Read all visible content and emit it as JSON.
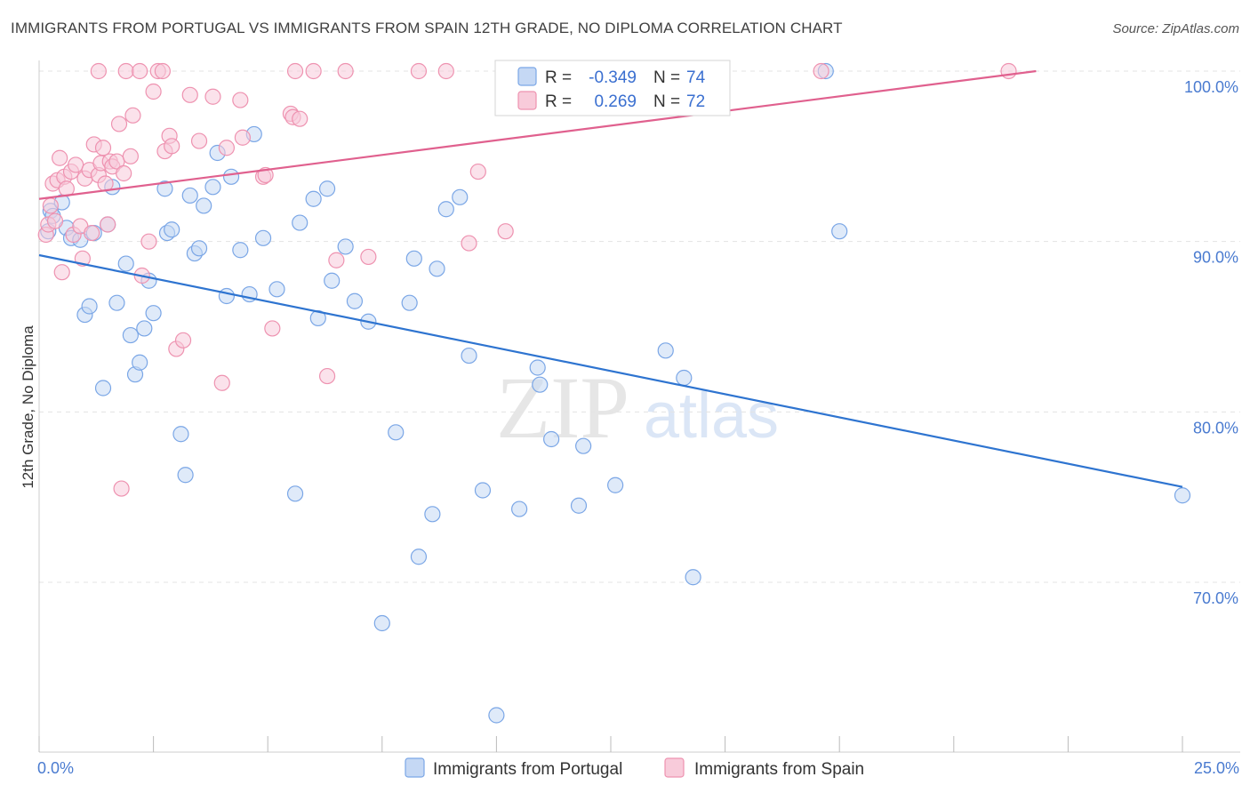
{
  "title": "IMMIGRANTS FROM PORTUGAL VS IMMIGRANTS FROM SPAIN 12TH GRADE, NO DIPLOMA CORRELATION CHART",
  "source": "Source: ZipAtlas.com",
  "watermark": {
    "zip": "ZIP",
    "atlas": "atlas"
  },
  "chart_data": {
    "type": "scatter",
    "ylabel": "12th Grade, No Diploma",
    "xlim": [
      0,
      25
    ],
    "ylim": [
      60.5,
      101
    ],
    "x_ticks": [
      0,
      2.5,
      5,
      7.5,
      10,
      12.5,
      15,
      17.5,
      20,
      22.5,
      25
    ],
    "x_tick_labels": {
      "start": "0.0%",
      "end": "25.0%"
    },
    "y_ticks": [
      {
        "value": 100,
        "label": "100.0%"
      },
      {
        "value": 90,
        "label": "90.0%"
      },
      {
        "value": 80,
        "label": "80.0%"
      },
      {
        "value": 70,
        "label": "70.0%"
      }
    ],
    "grid": "horizontal-dashed",
    "legend_position": "bottom-center",
    "stats": [
      {
        "r_label": "R =",
        "r_value": "-0.349",
        "n_label": "N =",
        "n_value": "74"
      },
      {
        "r_label": "R =",
        "r_value": "0.269",
        "n_label": "N =",
        "n_value": "72"
      }
    ],
    "series": [
      {
        "name": "Immigrants from Portugal",
        "color": "#7aa6e6",
        "fill": "#c5d8f4",
        "trend_color": "#2e74d0",
        "trend": {
          "x": [
            0,
            25
          ],
          "y": [
            89.2,
            75.6
          ]
        },
        "points": [
          [
            0.2,
            90.6
          ],
          [
            0.25,
            91.8
          ],
          [
            0.3,
            91.5
          ],
          [
            0.5,
            92.3
          ],
          [
            0.6,
            90.8
          ],
          [
            0.7,
            90.2
          ],
          [
            0.9,
            90.1
          ],
          [
            1.0,
            85.7
          ],
          [
            1.1,
            86.2
          ],
          [
            1.2,
            90.5
          ],
          [
            1.4,
            81.4
          ],
          [
            1.5,
            91.0
          ],
          [
            1.6,
            93.2
          ],
          [
            1.7,
            86.4
          ],
          [
            1.9,
            88.7
          ],
          [
            2.0,
            84.5
          ],
          [
            2.1,
            82.2
          ],
          [
            2.2,
            82.9
          ],
          [
            2.3,
            84.9
          ],
          [
            2.4,
            87.7
          ],
          [
            2.5,
            85.8
          ],
          [
            2.75,
            93.1
          ],
          [
            2.8,
            90.5
          ],
          [
            2.9,
            90.7
          ],
          [
            3.1,
            78.7
          ],
          [
            3.2,
            76.3
          ],
          [
            3.3,
            92.7
          ],
          [
            3.4,
            89.3
          ],
          [
            3.5,
            89.6
          ],
          [
            3.6,
            92.1
          ],
          [
            3.8,
            93.2
          ],
          [
            3.9,
            95.2
          ],
          [
            4.1,
            86.8
          ],
          [
            4.2,
            93.8
          ],
          [
            4.4,
            89.5
          ],
          [
            4.6,
            86.9
          ],
          [
            4.7,
            96.3
          ],
          [
            4.9,
            90.2
          ],
          [
            5.2,
            87.2
          ],
          [
            5.6,
            75.2
          ],
          [
            5.7,
            91.1
          ],
          [
            6.0,
            92.5
          ],
          [
            6.1,
            85.5
          ],
          [
            6.3,
            93.1
          ],
          [
            6.4,
            87.7
          ],
          [
            6.7,
            89.7
          ],
          [
            6.9,
            86.5
          ],
          [
            7.2,
            85.3
          ],
          [
            7.5,
            67.6
          ],
          [
            7.8,
            78.8
          ],
          [
            8.1,
            86.4
          ],
          [
            8.2,
            89.0
          ],
          [
            8.3,
            71.5
          ],
          [
            8.6,
            74.0
          ],
          [
            8.7,
            88.4
          ],
          [
            8.9,
            91.9
          ],
          [
            9.2,
            92.6
          ],
          [
            9.4,
            83.3
          ],
          [
            9.7,
            75.4
          ],
          [
            10.0,
            62.2
          ],
          [
            10.5,
            74.3
          ],
          [
            10.9,
            82.6
          ],
          [
            10.95,
            81.6
          ],
          [
            11.2,
            78.4
          ],
          [
            11.8,
            74.5
          ],
          [
            11.9,
            78.0
          ],
          [
            12.6,
            75.7
          ],
          [
            13.7,
            83.6
          ],
          [
            14.1,
            82.0
          ],
          [
            14.3,
            70.3
          ],
          [
            17.2,
            100.0
          ],
          [
            17.5,
            90.6
          ],
          [
            25.0,
            75.1
          ],
          [
            14.2,
            100.0
          ]
        ]
      },
      {
        "name": "Immigrants from Spain",
        "color": "#ee92b0",
        "fill": "#f8cbda",
        "trend_color": "#e0608e",
        "trend": {
          "x": [
            0,
            21.8
          ],
          "y": [
            92.5,
            100.0
          ]
        },
        "points": [
          [
            0.15,
            90.4
          ],
          [
            0.2,
            91.0
          ],
          [
            0.25,
            92.1
          ],
          [
            0.3,
            93.4
          ],
          [
            0.35,
            91.2
          ],
          [
            0.4,
            93.6
          ],
          [
            0.45,
            94.9
          ],
          [
            0.5,
            88.2
          ],
          [
            0.55,
            93.8
          ],
          [
            0.6,
            93.1
          ],
          [
            0.7,
            94.1
          ],
          [
            0.75,
            90.4
          ],
          [
            0.8,
            94.5
          ],
          [
            0.9,
            90.9
          ],
          [
            0.95,
            89.0
          ],
          [
            1.0,
            93.7
          ],
          [
            1.1,
            94.2
          ],
          [
            1.15,
            90.5
          ],
          [
            1.2,
            95.7
          ],
          [
            1.3,
            93.9
          ],
          [
            1.35,
            94.6
          ],
          [
            1.4,
            95.5
          ],
          [
            1.45,
            93.4
          ],
          [
            1.5,
            91.0
          ],
          [
            1.55,
            94.7
          ],
          [
            1.6,
            94.4
          ],
          [
            1.7,
            94.7
          ],
          [
            1.75,
            96.9
          ],
          [
            1.8,
            75.5
          ],
          [
            1.85,
            94.0
          ],
          [
            1.9,
            100.0
          ],
          [
            2.0,
            95.0
          ],
          [
            2.05,
            97.4
          ],
          [
            2.2,
            100.0
          ],
          [
            2.25,
            88.0
          ],
          [
            2.4,
            90.0
          ],
          [
            2.5,
            98.8
          ],
          [
            2.6,
            100.0
          ],
          [
            2.7,
            100.0
          ],
          [
            2.75,
            95.3
          ],
          [
            2.85,
            96.2
          ],
          [
            2.9,
            95.6
          ],
          [
            3.0,
            83.7
          ],
          [
            3.15,
            84.2
          ],
          [
            3.3,
            98.6
          ],
          [
            3.5,
            95.9
          ],
          [
            3.8,
            98.5
          ],
          [
            4.0,
            81.7
          ],
          [
            4.1,
            95.5
          ],
          [
            4.4,
            98.3
          ],
          [
            4.45,
            96.1
          ],
          [
            4.9,
            93.8
          ],
          [
            4.95,
            93.9
          ],
          [
            5.1,
            84.9
          ],
          [
            5.5,
            97.5
          ],
          [
            5.55,
            97.3
          ],
          [
            5.6,
            100.0
          ],
          [
            5.7,
            97.2
          ],
          [
            6.0,
            100.0
          ],
          [
            6.3,
            82.1
          ],
          [
            6.5,
            88.9
          ],
          [
            6.7,
            100.0
          ],
          [
            7.2,
            89.1
          ],
          [
            8.3,
            100.0
          ],
          [
            8.9,
            100.0
          ],
          [
            9.4,
            89.9
          ],
          [
            9.6,
            94.1
          ],
          [
            10.2,
            90.6
          ],
          [
            11.8,
            100.0
          ],
          [
            17.1,
            100.0
          ],
          [
            21.2,
            100.0
          ],
          [
            1.3,
            100.0
          ]
        ]
      }
    ]
  }
}
